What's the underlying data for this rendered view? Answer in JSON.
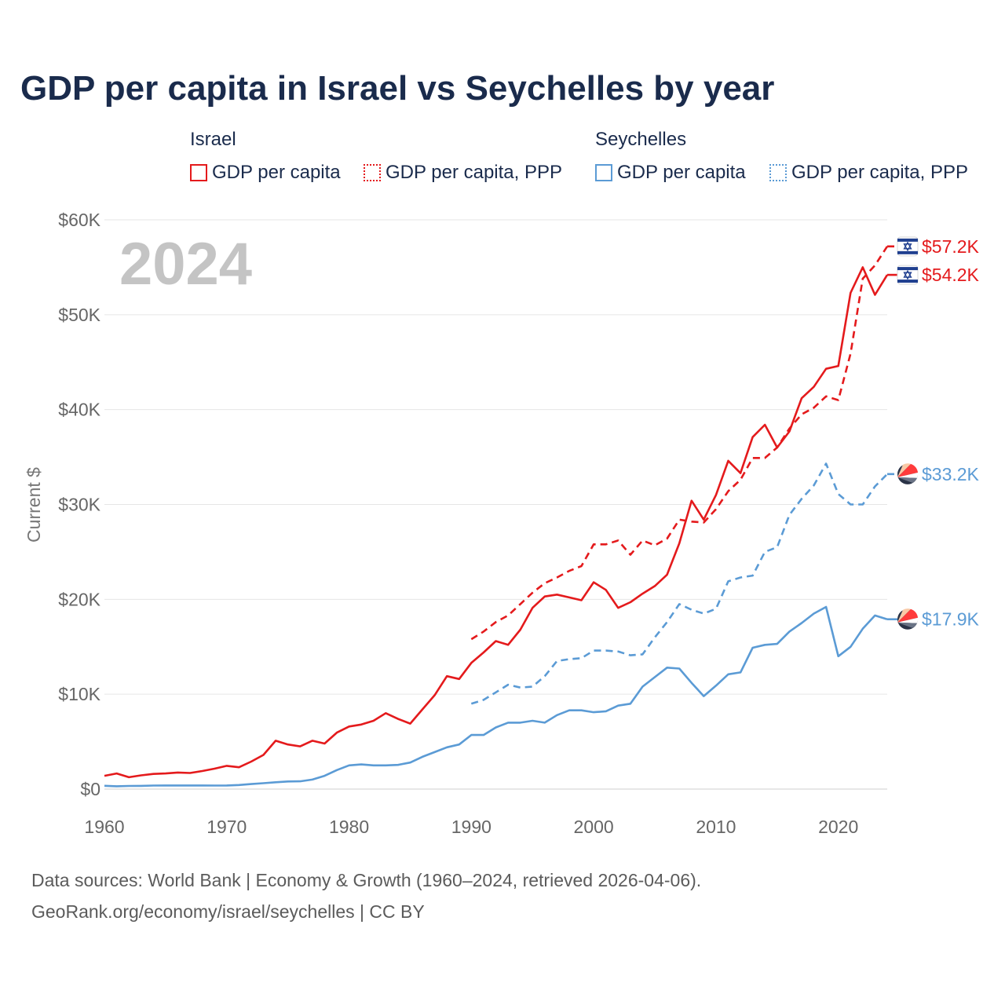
{
  "title": "GDP per capita in Israel vs Seychelles by year",
  "legend": {
    "groups": [
      {
        "name": "Israel",
        "items": [
          {
            "label": "GDP per capita",
            "style": "solid",
            "color": "#e41a1c"
          },
          {
            "label": "GDP per capita, PPP",
            "style": "dotted",
            "color": "#e41a1c"
          }
        ]
      },
      {
        "name": "Seychelles",
        "items": [
          {
            "label": "GDP per capita",
            "style": "solid",
            "color": "#5b9bd5"
          },
          {
            "label": "GDP per capita, PPP",
            "style": "dotted",
            "color": "#5b9bd5"
          }
        ]
      }
    ]
  },
  "footer": {
    "line1": "Data sources: World Bank | Economy & Growth (1960–2024, retrieved 2026-04-06).",
    "line2": "GeoRank.org/economy/israel/seychelles | CC BY"
  },
  "chart_data": {
    "type": "line",
    "year_label": "2024",
    "ylabel": "Current $",
    "xlim": [
      1960,
      2024
    ],
    "ylim": [
      0,
      60000
    ],
    "x_ticks": [
      1960,
      1970,
      1980,
      1990,
      2000,
      2010,
      2020
    ],
    "y_ticks": [
      {
        "value": 0,
        "label": "$0"
      },
      {
        "value": 10000,
        "label": "$10K"
      },
      {
        "value": 20000,
        "label": "$20K"
      },
      {
        "value": 30000,
        "label": "$30K"
      },
      {
        "value": 40000,
        "label": "$40K"
      },
      {
        "value": 50000,
        "label": "$50K"
      },
      {
        "value": 60000,
        "label": "$60K"
      }
    ],
    "series": [
      {
        "name": "Israel GDP per capita",
        "color": "#e41a1c",
        "dash": "solid",
        "end_label": "$54.2K",
        "flag": "israel-flag-icon",
        "x": [
          1960,
          1961,
          1962,
          1963,
          1964,
          1965,
          1966,
          1967,
          1968,
          1969,
          1970,
          1971,
          1972,
          1973,
          1974,
          1975,
          1976,
          1977,
          1978,
          1979,
          1980,
          1981,
          1982,
          1983,
          1984,
          1985,
          1986,
          1987,
          1988,
          1989,
          1990,
          1991,
          1992,
          1993,
          1994,
          1995,
          1996,
          1997,
          1998,
          1999,
          2000,
          2001,
          2002,
          2003,
          2004,
          2005,
          2006,
          2007,
          2008,
          2009,
          2010,
          2011,
          2012,
          2013,
          2014,
          2015,
          2016,
          2017,
          2018,
          2019,
          2020,
          2021,
          2022,
          2023,
          2024
        ],
        "y": [
          1400,
          1650,
          1250,
          1450,
          1600,
          1650,
          1750,
          1700,
          1900,
          2150,
          2450,
          2300,
          2900,
          3600,
          5100,
          4700,
          4500,
          5100,
          4800,
          5950,
          6600,
          6800,
          7200,
          8000,
          7400,
          6900,
          8400,
          9900,
          11900,
          11600,
          13300,
          14400,
          15600,
          15200,
          16800,
          19100,
          20300,
          20500,
          20200,
          19900,
          21800,
          21000,
          19100,
          19700,
          20600,
          21400,
          22600,
          25900,
          30400,
          28400,
          31000,
          34600,
          33300,
          37100,
          38400,
          36000,
          37700,
          41200,
          42400,
          44300,
          44600,
          52300,
          55000,
          52100,
          54200
        ]
      },
      {
        "name": "Israel GDP per capita, PPP",
        "color": "#e41a1c",
        "dash": "dashed",
        "end_label": "$57.2K",
        "flag": "israel-flag-icon",
        "x": [
          1990,
          1991,
          1992,
          1993,
          1994,
          1995,
          1996,
          1997,
          1998,
          1999,
          2000,
          2001,
          2002,
          2003,
          2004,
          2005,
          2006,
          2007,
          2008,
          2009,
          2010,
          2011,
          2012,
          2013,
          2014,
          2015,
          2016,
          2017,
          2018,
          2019,
          2020,
          2021,
          2022,
          2023,
          2024
        ],
        "y": [
          15800,
          16600,
          17600,
          18300,
          19500,
          20700,
          21700,
          22300,
          23000,
          23500,
          25800,
          25800,
          26200,
          24700,
          26200,
          25700,
          26400,
          28400,
          28200,
          28100,
          29500,
          31400,
          32600,
          34900,
          34900,
          36000,
          38000,
          39500,
          40200,
          41400,
          41000,
          45900,
          53800,
          55200,
          57200
        ]
      },
      {
        "name": "Seychelles GDP per capita",
        "color": "#5b9bd5",
        "dash": "solid",
        "end_label": "$17.9K",
        "flag": "seychelles-flag-icon",
        "x": [
          1960,
          1961,
          1962,
          1963,
          1964,
          1965,
          1966,
          1967,
          1968,
          1969,
          1970,
          1971,
          1972,
          1973,
          1974,
          1975,
          1976,
          1977,
          1978,
          1979,
          1980,
          1981,
          1982,
          1983,
          1984,
          1985,
          1986,
          1987,
          1988,
          1989,
          1990,
          1991,
          1992,
          1993,
          1994,
          1995,
          1996,
          1997,
          1998,
          1999,
          2000,
          2001,
          2002,
          2003,
          2004,
          2005,
          2006,
          2007,
          2008,
          2009,
          2010,
          2011,
          2012,
          2013,
          2014,
          2015,
          2016,
          2017,
          2018,
          2019,
          2020,
          2021,
          2022,
          2023,
          2024
        ],
        "y": [
          350,
          300,
          330,
          340,
          370,
          380,
          380,
          380,
          380,
          370,
          380,
          430,
          530,
          620,
          720,
          800,
          820,
          1000,
          1400,
          2000,
          2500,
          2600,
          2500,
          2500,
          2550,
          2800,
          3400,
          3900,
          4400,
          4700,
          5700,
          5700,
          6500,
          7000,
          7000,
          7200,
          7000,
          7800,
          8300,
          8300,
          8100,
          8200,
          8800,
          9000,
          10800,
          11800,
          12800,
          12700,
          11200,
          9800,
          10900,
          12100,
          12300,
          14900,
          15200,
          15300,
          16600,
          17500,
          18500,
          19200,
          14000,
          15000,
          16900,
          18300,
          17900
        ]
      },
      {
        "name": "Seychelles GDP per capita, PPP",
        "color": "#5b9bd5",
        "dash": "dashed",
        "end_label": "$33.2K",
        "flag": "seychelles-flag-icon",
        "x": [
          1990,
          1991,
          1992,
          1993,
          1994,
          1995,
          1996,
          1997,
          1998,
          1999,
          2000,
          2001,
          2002,
          2003,
          2004,
          2005,
          2006,
          2007,
          2008,
          2009,
          2010,
          2011,
          2012,
          2013,
          2014,
          2015,
          2016,
          2017,
          2018,
          2019,
          2020,
          2021,
          2022,
          2023,
          2024
        ],
        "y": [
          9000,
          9400,
          10200,
          11000,
          10700,
          10800,
          11900,
          13500,
          13700,
          13800,
          14600,
          14600,
          14500,
          14100,
          14200,
          16000,
          17600,
          19500,
          18900,
          18500,
          19000,
          21900,
          22300,
          22500,
          25000,
          25500,
          28900,
          30600,
          32000,
          34300,
          31100,
          30000,
          30000,
          31900,
          33200
        ]
      }
    ]
  }
}
